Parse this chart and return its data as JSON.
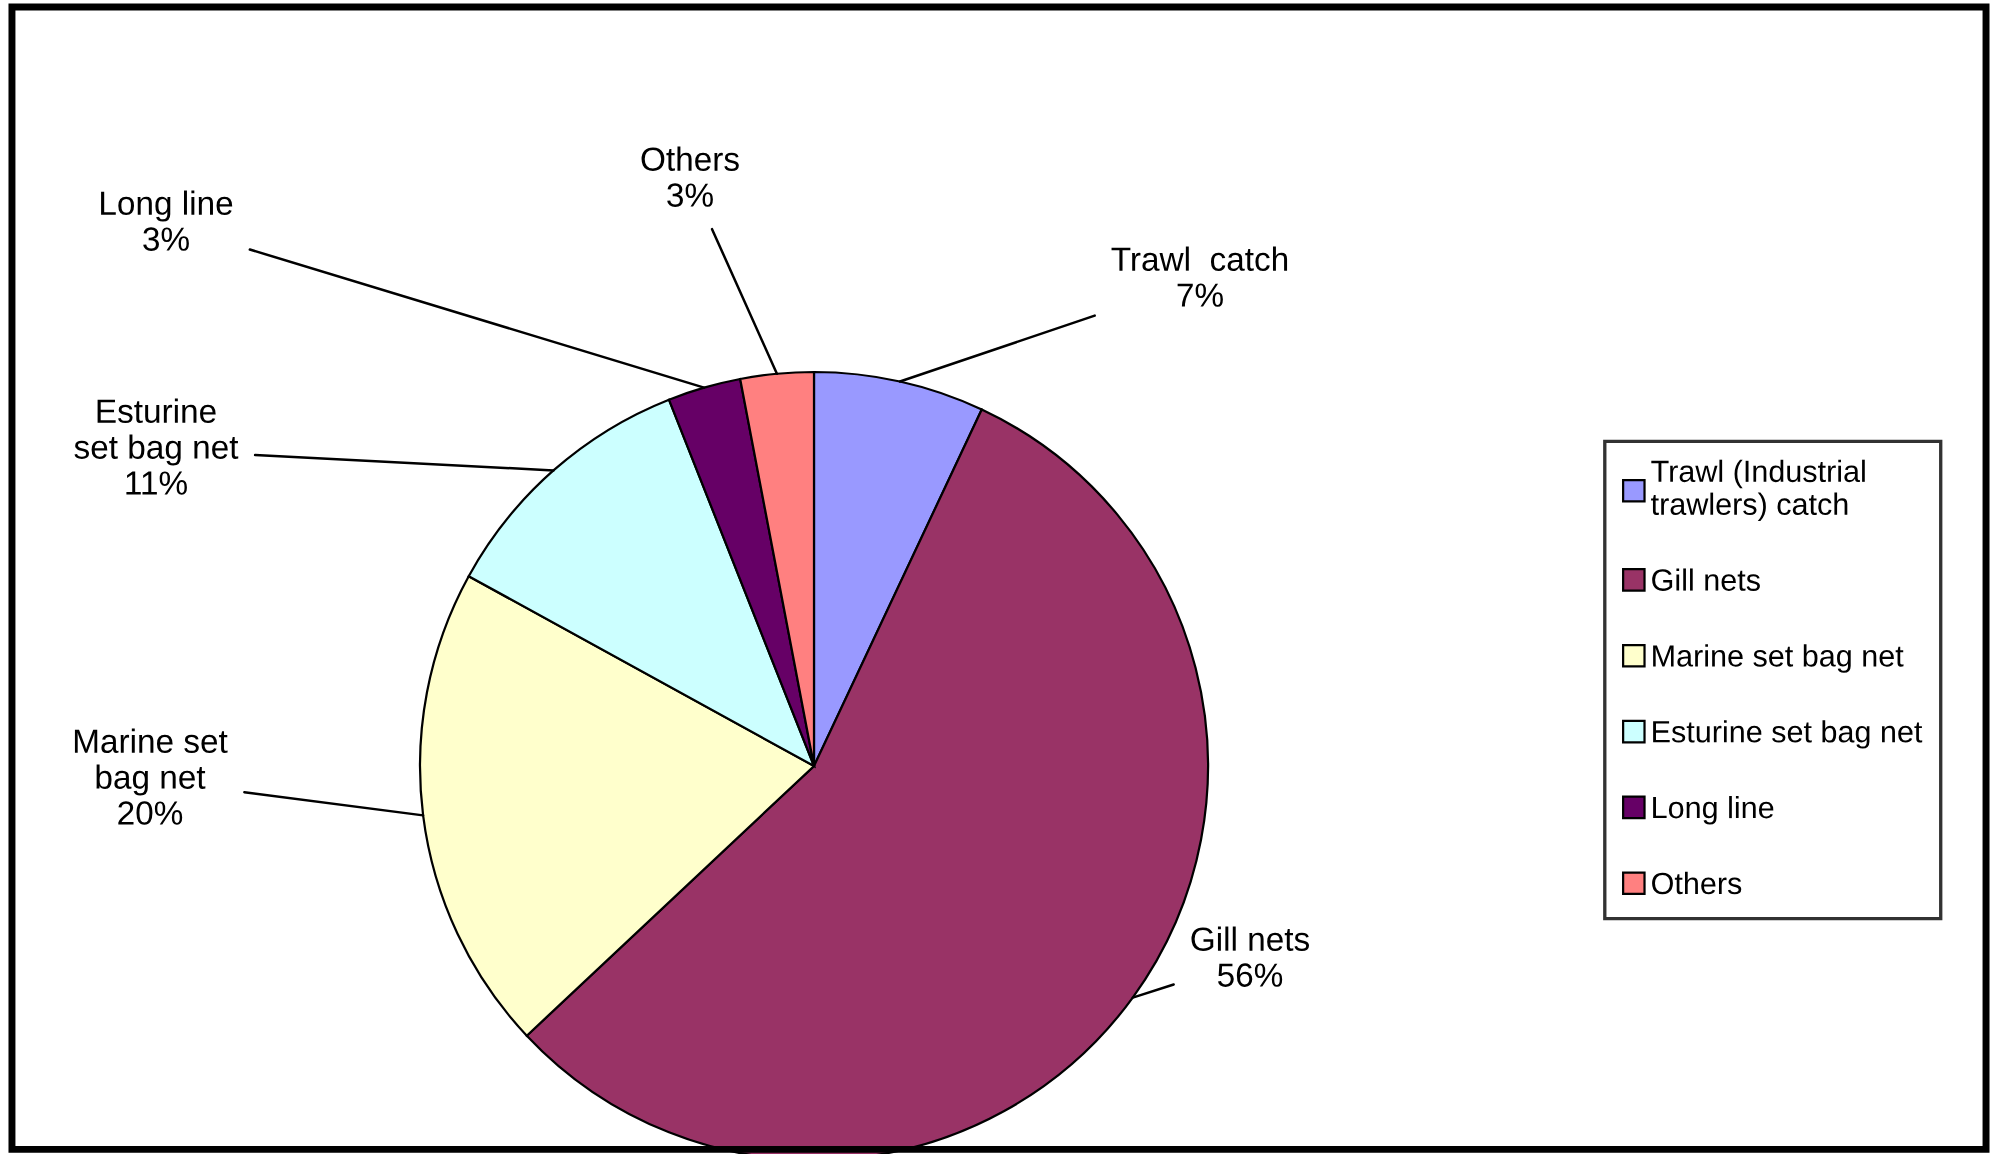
{
  "chart_data": {
    "type": "pie",
    "categories": [
      "Trawl (Industrial\ntrawlers) catch",
      "Gill nets",
      "Marine set bag net",
      "Esturine set bag net",
      "Long line",
      "Others"
    ],
    "values": [
      7,
      56,
      20,
      11,
      3,
      3
    ],
    "colors": [
      "#9999ff",
      "#993366",
      "#ffffcc",
      "#ccffff",
      "#660066",
      "#ff8080"
    ],
    "value_labels": [
      "Trawl  catch\n7%",
      "Gill nets\n56%",
      "Marine set\nbag net\n20%",
      "Esturine\nset bag net\n11%",
      "Long line\n3%",
      "Others\n3%"
    ],
    "legend": "right"
  }
}
